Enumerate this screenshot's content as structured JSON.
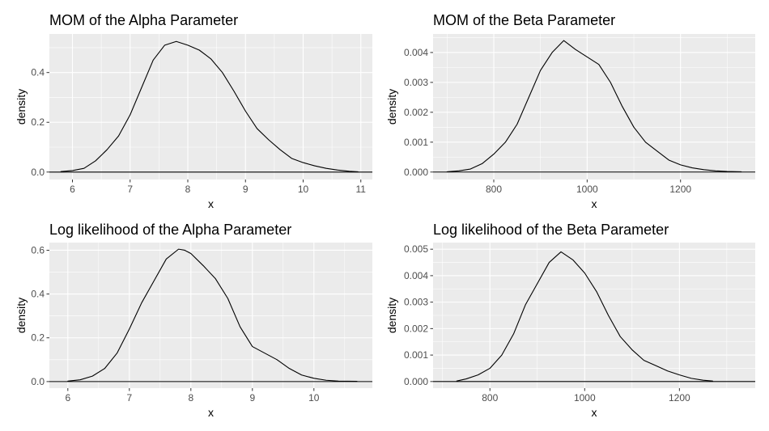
{
  "figure": {
    "panel_background": "#ebebeb",
    "grid_color": "#ffffff",
    "line_color": "#000000",
    "tick_label_color": "#4d4d4d"
  },
  "chart_data": [
    {
      "type": "line",
      "title": "MOM of the Alpha Parameter",
      "xlabel": "x",
      "ylabel": "density",
      "xlim": [
        5.6,
        11.2
      ],
      "ylim": [
        -0.03,
        0.555
      ],
      "xticks": [
        6,
        7,
        8,
        9,
        10,
        11
      ],
      "xtick_labels": [
        "6",
        "7",
        "8",
        "9",
        "10",
        "11"
      ],
      "yticks": [
        0,
        0.2,
        0.4
      ],
      "ytick_labels": [
        "0.0",
        "0.2",
        "0.4"
      ],
      "grid": true,
      "baseline": 0,
      "x": [
        5.8,
        6.0,
        6.2,
        6.4,
        6.6,
        6.8,
        7.0,
        7.2,
        7.4,
        7.6,
        7.8,
        8.0,
        8.2,
        8.4,
        8.6,
        8.8,
        9.0,
        9.2,
        9.4,
        9.6,
        9.8,
        10.0,
        10.2,
        10.4,
        10.6,
        10.8,
        10.95
      ],
      "y": [
        0.002,
        0.006,
        0.015,
        0.045,
        0.09,
        0.145,
        0.23,
        0.34,
        0.45,
        0.51,
        0.525,
        0.51,
        0.49,
        0.455,
        0.4,
        0.325,
        0.245,
        0.175,
        0.13,
        0.09,
        0.055,
        0.038,
        0.025,
        0.015,
        0.008,
        0.003,
        0.001
      ]
    },
    {
      "type": "line",
      "title": "MOM of the Beta Parameter",
      "xlabel": "x",
      "ylabel": "density",
      "xlim": [
        670,
        1360
      ],
      "ylim": [
        -0.00025,
        0.00462
      ],
      "xticks": [
        800,
        1000,
        1200
      ],
      "xtick_labels": [
        "800",
        "1000",
        "1200"
      ],
      "yticks": [
        0,
        0.001,
        0.002,
        0.003,
        0.004
      ],
      "ytick_labels": [
        "0.000",
        "0.001",
        "0.002",
        "0.003",
        "0.004"
      ],
      "grid": true,
      "baseline": 0,
      "x": [
        700,
        725,
        750,
        775,
        800,
        825,
        850,
        875,
        900,
        925,
        950,
        975,
        1000,
        1025,
        1050,
        1075,
        1100,
        1125,
        1150,
        1175,
        1200,
        1225,
        1250,
        1275,
        1300,
        1330
      ],
      "y": [
        1e-05,
        4e-05,
        0.0001,
        0.00028,
        0.0006,
        0.001,
        0.0016,
        0.0025,
        0.0034,
        0.004,
        0.0044,
        0.0041,
        0.00385,
        0.0036,
        0.003,
        0.0022,
        0.0015,
        0.001,
        0.0007,
        0.0004,
        0.00024,
        0.00014,
        8e-05,
        4e-05,
        2e-05,
        1e-05
      ]
    },
    {
      "type": "line",
      "title": "Log likelihood of the Alpha Parameter",
      "xlabel": "x",
      "ylabel": "density",
      "xlim": [
        5.7,
        10.95
      ],
      "ylim": [
        -0.03,
        0.635
      ],
      "xticks": [
        6,
        7,
        8,
        9,
        10
      ],
      "xtick_labels": [
        "6",
        "7",
        "8",
        "9",
        "10"
      ],
      "yticks": [
        0,
        0.2,
        0.4,
        0.6
      ],
      "ytick_labels": [
        "0.0",
        "0.2",
        "0.4",
        "0.6"
      ],
      "grid": true,
      "baseline": 0,
      "x": [
        6.0,
        6.2,
        6.4,
        6.6,
        6.8,
        7.0,
        7.2,
        7.4,
        7.6,
        7.8,
        7.9,
        8.0,
        8.2,
        8.4,
        8.6,
        8.8,
        9.0,
        9.2,
        9.4,
        9.6,
        9.8,
        10.0,
        10.2,
        10.4,
        10.7
      ],
      "y": [
        0.002,
        0.008,
        0.025,
        0.06,
        0.13,
        0.24,
        0.36,
        0.46,
        0.56,
        0.605,
        0.6,
        0.585,
        0.53,
        0.47,
        0.38,
        0.25,
        0.16,
        0.13,
        0.1,
        0.06,
        0.03,
        0.015,
        0.006,
        0.002,
        0.001
      ]
    },
    {
      "type": "line",
      "title": "Log likelihood of the Beta Parameter",
      "xlabel": "x",
      "ylabel": "density",
      "xlim": [
        680,
        1360
      ],
      "ylim": [
        -0.00025,
        0.00525
      ],
      "xticks": [
        800,
        1000,
        1200
      ],
      "xtick_labels": [
        "800",
        "1000",
        "1200"
      ],
      "yticks": [
        0,
        0.001,
        0.002,
        0.003,
        0.004,
        0.005
      ],
      "ytick_labels": [
        "0.000",
        "0.001",
        "0.002",
        "0.003",
        "0.004",
        "0.005"
      ],
      "grid": true,
      "baseline": 0,
      "x": [
        730,
        750,
        775,
        800,
        825,
        850,
        875,
        900,
        925,
        950,
        975,
        1000,
        1025,
        1050,
        1075,
        1100,
        1125,
        1150,
        1175,
        1200,
        1225,
        1250,
        1270
      ],
      "y": [
        2e-05,
        0.0001,
        0.00025,
        0.0005,
        0.001,
        0.0018,
        0.0029,
        0.0037,
        0.0045,
        0.0049,
        0.0046,
        0.0041,
        0.0034,
        0.0025,
        0.0017,
        0.0012,
        0.0008,
        0.0006,
        0.0004,
        0.00025,
        0.00012,
        5e-05,
        2e-05
      ]
    }
  ]
}
